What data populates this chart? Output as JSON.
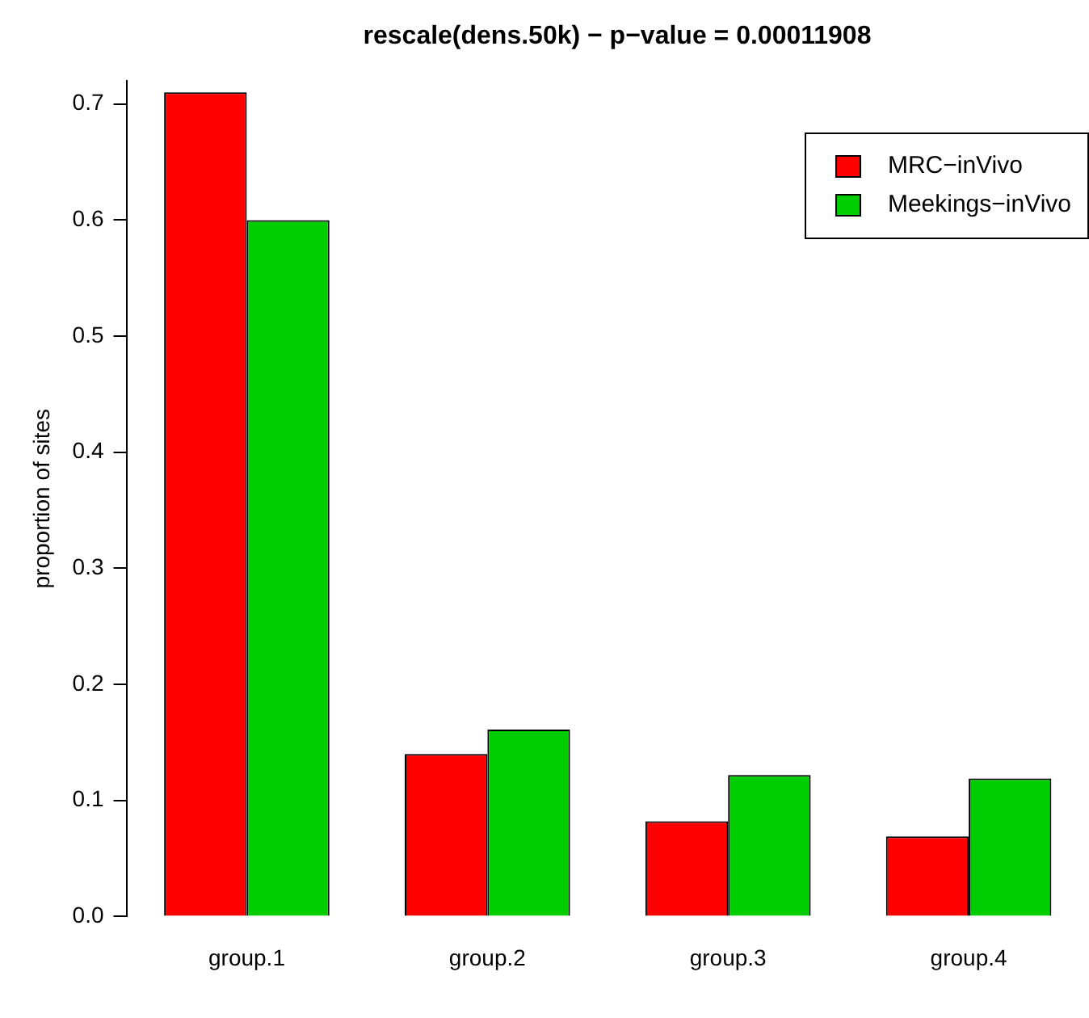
{
  "chart_data": {
    "type": "bar",
    "title": "rescale(dens.50k)  − p−value = 0.00011908",
    "ylabel": "proportion of sites",
    "categories": [
      "group.1",
      "group.2",
      "group.3",
      "group.4"
    ],
    "series": [
      {
        "name": "MRC−inVivo",
        "color": "#ff0000",
        "values": [
          0.71,
          0.14,
          0.082,
          0.069
        ]
      },
      {
        "name": "Meekings−inVivo",
        "color": "#00cd00",
        "values": [
          0.6,
          0.161,
          0.122,
          0.119
        ]
      }
    ],
    "ylim": [
      0,
      0.72
    ],
    "yticks": [
      {
        "value": 0,
        "label": "0.0"
      },
      0.1,
      0.2,
      0.3,
      0.4,
      0.5,
      0.6,
      0.7
    ],
    "grid": false,
    "legend": "top right"
  }
}
